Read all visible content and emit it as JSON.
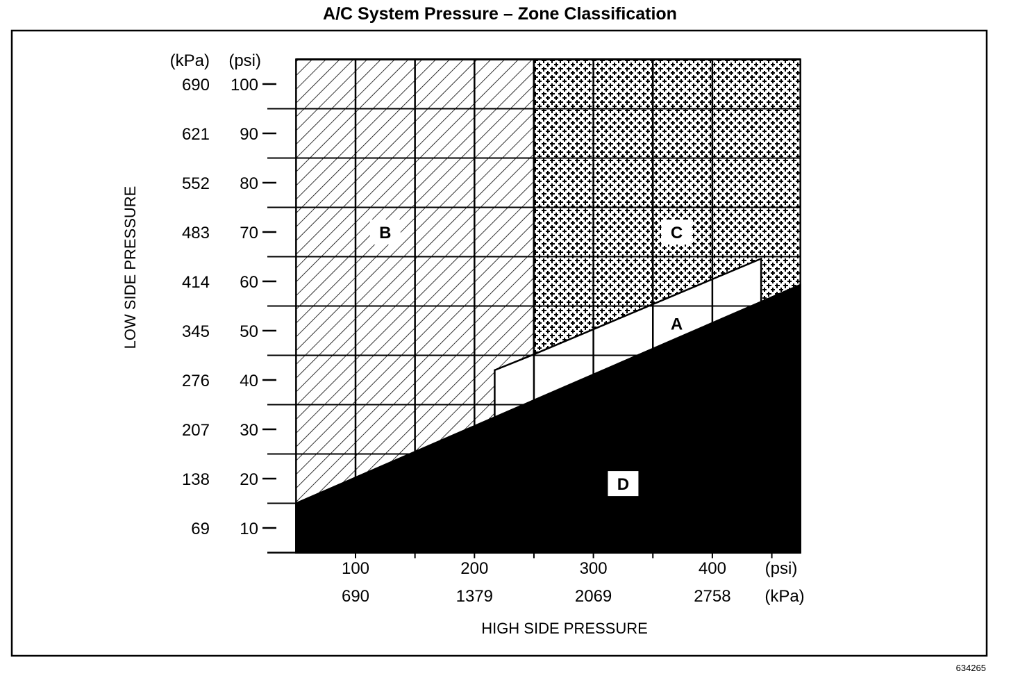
{
  "chart_data": {
    "type": "area",
    "title": "A/C System Pressure – Zone Classification",
    "xlabel": "HIGH SIDE PRESSURE",
    "ylabel": "LOW SIDE PRESSURE",
    "x_unit_labels": {
      "psi": "(psi)",
      "kpa": "(kPa)"
    },
    "y_unit_labels": {
      "kpa": "(kPa)",
      "psi": "(psi)"
    },
    "xlim_psi": [
      50,
      474
    ],
    "ylim_psi": [
      5,
      105
    ],
    "x_ticks": [
      {
        "psi": "100",
        "kpa": "690",
        "value": 100
      },
      {
        "psi": "200",
        "kpa": "1379",
        "value": 200
      },
      {
        "psi": "300",
        "kpa": "2069",
        "value": 300
      },
      {
        "psi": "400",
        "kpa": "2758",
        "value": 400
      }
    ],
    "y_ticks": [
      {
        "psi": "100",
        "kpa": "690",
        "value": 100
      },
      {
        "psi": "90",
        "kpa": "621",
        "value": 90
      },
      {
        "psi": "80",
        "kpa": "552",
        "value": 80
      },
      {
        "psi": "70",
        "kpa": "483",
        "value": 70
      },
      {
        "psi": "60",
        "kpa": "414",
        "value": 60
      },
      {
        "psi": "50",
        "kpa": "345",
        "value": 50
      },
      {
        "psi": "40",
        "kpa": "276",
        "value": 40
      },
      {
        "psi": "30",
        "kpa": "207",
        "value": 30
      },
      {
        "psi": "20",
        "kpa": "138",
        "value": 20
      },
      {
        "psi": "10",
        "kpa": "69",
        "value": 10
      }
    ],
    "grid_x_psi": [
      100,
      150,
      200,
      250,
      300,
      350,
      400
    ],
    "grid_y_psi": [
      15,
      25,
      35,
      45,
      55,
      65,
      75,
      85,
      95
    ],
    "zones": [
      {
        "name": "B",
        "fill": "hatch",
        "polygon": [
          [
            50,
            105
          ],
          [
            250,
            105
          ],
          [
            250,
            5
          ],
          [
            50,
            5
          ]
        ],
        "label_at": [
          125,
          70
        ]
      },
      {
        "name": "C",
        "fill": "crosshatch",
        "polygon": [
          [
            250,
            105
          ],
          [
            474,
            105
          ],
          [
            474,
            5
          ],
          [
            250,
            5
          ]
        ],
        "label_at": [
          370,
          70
        ]
      },
      {
        "name": "A",
        "fill": "white",
        "polygon": [
          [
            217,
            32.4
          ],
          [
            217,
            42
          ],
          [
            250,
            45.2
          ],
          [
            441,
            64.6
          ],
          [
            441,
            55.8
          ]
        ],
        "label_at": [
          370,
          51.5
        ]
      },
      {
        "name": "D",
        "fill": "black",
        "polygon": [
          [
            50,
            15
          ],
          [
            474,
            59.3
          ],
          [
            474,
            5
          ],
          [
            50,
            5
          ]
        ],
        "label_at": [
          325,
          19
        ]
      }
    ]
  },
  "figure_number": "634265",
  "colors": {
    "ink": "#000000",
    "paper": "#ffffff"
  }
}
